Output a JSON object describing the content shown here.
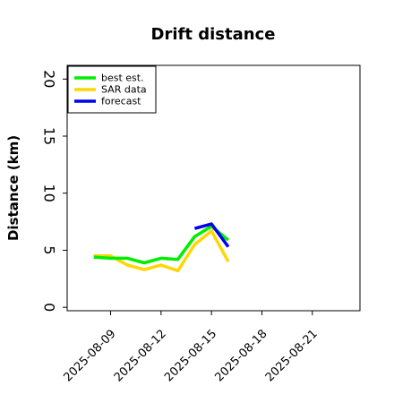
{
  "chart_data": {
    "type": "line",
    "title": "Drift distance",
    "xlabel": "",
    "ylabel": "Distance (km)",
    "xlim": [
      "2025-08-06T10:00",
      "2025-08-23T20:00"
    ],
    "ylim": [
      -0.3,
      21.2
    ],
    "x_ticks": [
      "2025-08-09",
      "2025-08-12",
      "2025-08-15",
      "2025-08-18",
      "2025-08-21"
    ],
    "y_ticks": [
      0,
      5,
      10,
      15,
      20
    ],
    "grid": false,
    "legend": "top-left",
    "series": [
      {
        "name": "best est.",
        "color": "#00ee00",
        "points": [
          {
            "x": "2025-08-08",
            "y": 4.4
          },
          {
            "x": "2025-08-09",
            "y": 4.3
          },
          {
            "x": "2025-08-10",
            "y": 4.3
          },
          {
            "x": "2025-08-11",
            "y": 3.9
          },
          {
            "x": "2025-08-12",
            "y": 4.3
          },
          {
            "x": "2025-08-13",
            "y": 4.2
          },
          {
            "x": "2025-08-14",
            "y": 6.2
          },
          {
            "x": "2025-08-15",
            "y": 7.1
          },
          {
            "x": "2025-08-16",
            "y": 5.9
          }
        ]
      },
      {
        "name": "SAR data",
        "color": "#ffd700",
        "points": [
          {
            "x": "2025-08-08",
            "y": 4.5
          },
          {
            "x": "2025-08-09",
            "y": 4.5
          },
          {
            "x": "2025-08-10",
            "y": 3.7
          },
          {
            "x": "2025-08-11",
            "y": 3.3
          },
          {
            "x": "2025-08-12",
            "y": 3.7
          },
          {
            "x": "2025-08-13",
            "y": 3.2
          },
          {
            "x": "2025-08-14",
            "y": 5.5
          },
          {
            "x": "2025-08-15",
            "y": 6.7
          },
          {
            "x": "2025-08-16",
            "y": 4.0
          }
        ]
      },
      {
        "name": "forecast",
        "color": "#0000ee",
        "points": [
          {
            "x": "2025-08-14",
            "y": 6.9
          },
          {
            "x": "2025-08-15",
            "y": 7.3
          },
          {
            "x": "2025-08-16",
            "y": 5.3
          }
        ]
      }
    ]
  }
}
